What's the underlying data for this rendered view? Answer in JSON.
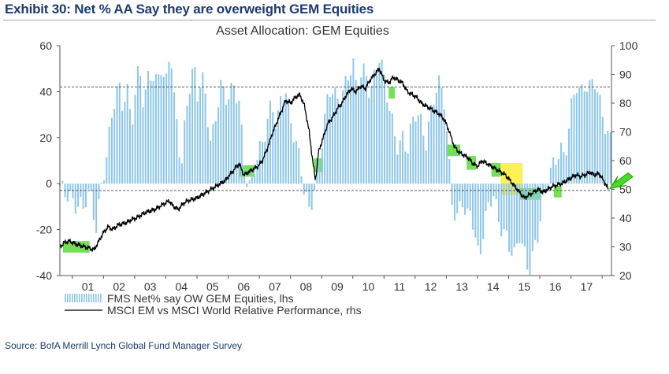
{
  "exhibit_title": "Exhibit 30: Net % AA Say they are overweight GEM Equities",
  "source": "Source: BofA Merrill Lynch Global Fund Manager Survey",
  "colors": {
    "bars": "#8ec6ec",
    "line": "#000000",
    "green": "#66dd44",
    "yellow": "#ffee44",
    "arrow": "#44dd22",
    "text": "#1f3b73"
  },
  "chart_data": {
    "type": "bar",
    "title": "Asset Allocation: GEM Equities",
    "ylim_left": [
      -40,
      60
    ],
    "ylim_right": [
      20,
      100
    ],
    "left_ticks": [
      "-40",
      "-20",
      "0",
      "20",
      "40",
      "60"
    ],
    "right_ticks": [
      "20",
      "30",
      "40",
      "50",
      "60",
      "70",
      "80",
      "90",
      "100"
    ],
    "x_labels": [
      "01",
      "02",
      "03",
      "04",
      "05",
      "06",
      "07",
      "08",
      "09",
      "10",
      "11",
      "12",
      "13",
      "14",
      "15",
      "16",
      "17"
    ],
    "x_range": [
      2000.6,
      2018.3
    ],
    "dashed_upper_lhs": 42,
    "dashed_lower_lhs": -3,
    "legend": [
      {
        "label": "FMS Net% say OW GEM Equities, lhs",
        "kind": "bar"
      },
      {
        "label": "MSCI EM vs MSCI World Relative Performance, rhs",
        "kind": "line"
      }
    ],
    "bar_keypoints": [
      [
        2000.6,
        -3
      ],
      [
        2000.75,
        -7
      ],
      [
        2000.9,
        -4
      ],
      [
        2001.05,
        -8
      ],
      [
        2001.2,
        -6
      ],
      [
        2001.35,
        -12
      ],
      [
        2001.5,
        -5
      ],
      [
        2001.6,
        -9
      ],
      [
        2001.75,
        -20
      ],
      [
        2001.9,
        -2
      ],
      [
        2002.0,
        6
      ],
      [
        2002.1,
        14
      ],
      [
        2002.25,
        26
      ],
      [
        2002.4,
        38
      ],
      [
        2002.5,
        40
      ],
      [
        2002.6,
        34
      ],
      [
        2002.75,
        44
      ],
      [
        2002.9,
        28
      ],
      [
        2003.0,
        38
      ],
      [
        2003.15,
        50
      ],
      [
        2003.3,
        30
      ],
      [
        2003.4,
        44
      ],
      [
        2003.55,
        50
      ],
      [
        2003.7,
        46
      ],
      [
        2003.85,
        52
      ],
      [
        2004.0,
        40
      ],
      [
        2004.15,
        58
      ],
      [
        2004.25,
        38
      ],
      [
        2004.4,
        20
      ],
      [
        2004.5,
        10
      ],
      [
        2004.6,
        26
      ],
      [
        2004.75,
        42
      ],
      [
        2004.9,
        50
      ],
      [
        2005.0,
        34
      ],
      [
        2005.15,
        48
      ],
      [
        2005.3,
        36
      ],
      [
        2005.45,
        20
      ],
      [
        2005.6,
        28
      ],
      [
        2005.75,
        42
      ],
      [
        2005.9,
        34
      ],
      [
        2006.05,
        40
      ],
      [
        2006.2,
        44
      ],
      [
        2006.35,
        38
      ],
      [
        2006.5,
        10
      ],
      [
        2006.6,
        0
      ],
      [
        2006.7,
        -4
      ],
      [
        2006.85,
        6
      ],
      [
        2006.95,
        14
      ],
      [
        2007.1,
        20
      ],
      [
        2007.25,
        28
      ],
      [
        2007.4,
        34
      ],
      [
        2007.55,
        22
      ],
      [
        2007.7,
        36
      ],
      [
        2007.85,
        42
      ],
      [
        2008.0,
        30
      ],
      [
        2008.15,
        20
      ],
      [
        2008.3,
        8
      ],
      [
        2008.45,
        -6
      ],
      [
        2008.6,
        -12
      ],
      [
        2008.75,
        -2
      ],
      [
        2008.85,
        8
      ],
      [
        2009.0,
        18
      ],
      [
        2009.15,
        32
      ],
      [
        2009.3,
        40
      ],
      [
        2009.5,
        36
      ],
      [
        2009.65,
        42
      ],
      [
        2009.8,
        46
      ],
      [
        2010.0,
        52
      ],
      [
        2010.1,
        40
      ],
      [
        2010.25,
        46
      ],
      [
        2010.4,
        50
      ],
      [
        2010.55,
        42
      ],
      [
        2010.7,
        48
      ],
      [
        2010.85,
        54
      ],
      [
        2011.0,
        44
      ],
      [
        2011.15,
        34
      ],
      [
        2011.3,
        26
      ],
      [
        2011.45,
        18
      ],
      [
        2011.6,
        20
      ],
      [
        2011.75,
        12
      ],
      [
        2011.9,
        24
      ],
      [
        2012.05,
        32
      ],
      [
        2012.2,
        28
      ],
      [
        2012.35,
        20
      ],
      [
        2012.5,
        30
      ],
      [
        2012.65,
        38
      ],
      [
        2012.8,
        42
      ],
      [
        2012.95,
        36
      ],
      [
        2013.05,
        18
      ],
      [
        2013.2,
        -8
      ],
      [
        2013.35,
        -16
      ],
      [
        2013.5,
        -8
      ],
      [
        2013.65,
        -18
      ],
      [
        2013.8,
        -10
      ],
      [
        2013.95,
        -24
      ],
      [
        2014.05,
        -30
      ],
      [
        2014.2,
        -20
      ],
      [
        2014.35,
        -12
      ],
      [
        2014.5,
        -6
      ],
      [
        2014.65,
        -14
      ],
      [
        2014.8,
        -18
      ],
      [
        2014.95,
        -22
      ],
      [
        2015.05,
        -28
      ],
      [
        2015.2,
        -34
      ],
      [
        2015.35,
        -24
      ],
      [
        2015.5,
        -30
      ],
      [
        2015.65,
        -36
      ],
      [
        2015.8,
        -28
      ],
      [
        2015.95,
        -22
      ],
      [
        2016.05,
        -14
      ],
      [
        2016.2,
        -6
      ],
      [
        2016.35,
        6
      ],
      [
        2016.5,
        12
      ],
      [
        2016.65,
        18
      ],
      [
        2016.8,
        10
      ],
      [
        2016.95,
        24
      ],
      [
        2017.05,
        34
      ],
      [
        2017.2,
        44
      ],
      [
        2017.3,
        40
      ],
      [
        2017.45,
        46
      ],
      [
        2017.6,
        42
      ],
      [
        2017.75,
        44
      ],
      [
        2017.9,
        34
      ],
      [
        2018.0,
        30
      ],
      [
        2018.1,
        26
      ],
      [
        2018.2,
        22
      ]
    ],
    "line_keypoints": [
      [
        2000.6,
        30
      ],
      [
        2000.75,
        31.5
      ],
      [
        2000.9,
        32
      ],
      [
        2001.1,
        31
      ],
      [
        2001.25,
        30.5
      ],
      [
        2001.4,
        30
      ],
      [
        2001.55,
        29.5
      ],
      [
        2001.7,
        29
      ],
      [
        2001.85,
        32
      ],
      [
        2002.0,
        35
      ],
      [
        2002.15,
        37
      ],
      [
        2002.3,
        36
      ],
      [
        2002.45,
        37.5
      ],
      [
        2002.6,
        38
      ],
      [
        2002.75,
        38.5
      ],
      [
        2002.9,
        39.5
      ],
      [
        2003.05,
        40
      ],
      [
        2003.2,
        41
      ],
      [
        2003.35,
        42
      ],
      [
        2003.5,
        42.5
      ],
      [
        2003.65,
        43
      ],
      [
        2003.8,
        44
      ],
      [
        2003.95,
        45
      ],
      [
        2004.1,
        46
      ],
      [
        2004.25,
        44
      ],
      [
        2004.4,
        43
      ],
      [
        2004.55,
        45
      ],
      [
        2004.7,
        46
      ],
      [
        2004.85,
        46.5
      ],
      [
        2005.0,
        47
      ],
      [
        2005.15,
        48
      ],
      [
        2005.3,
        49
      ],
      [
        2005.45,
        50
      ],
      [
        2005.6,
        51
      ],
      [
        2005.75,
        52
      ],
      [
        2005.9,
        53
      ],
      [
        2006.05,
        55
      ],
      [
        2006.2,
        57
      ],
      [
        2006.35,
        59
      ],
      [
        2006.5,
        55
      ],
      [
        2006.65,
        56
      ],
      [
        2006.8,
        57
      ],
      [
        2006.95,
        58
      ],
      [
        2007.1,
        60
      ],
      [
        2007.25,
        64
      ],
      [
        2007.4,
        69
      ],
      [
        2007.55,
        73
      ],
      [
        2007.7,
        77
      ],
      [
        2007.85,
        81
      ],
      [
        2008.0,
        80
      ],
      [
        2008.15,
        82
      ],
      [
        2008.3,
        83
      ],
      [
        2008.45,
        79
      ],
      [
        2008.6,
        70
      ],
      [
        2008.7,
        61
      ],
      [
        2008.8,
        53
      ],
      [
        2008.9,
        63
      ],
      [
        2009.05,
        68
      ],
      [
        2009.2,
        73
      ],
      [
        2009.35,
        75
      ],
      [
        2009.5,
        78
      ],
      [
        2009.65,
        80
      ],
      [
        2009.8,
        83
      ],
      [
        2009.95,
        85
      ],
      [
        2010.1,
        84
      ],
      [
        2010.25,
        86
      ],
      [
        2010.4,
        85
      ],
      [
        2010.55,
        88
      ],
      [
        2010.7,
        90
      ],
      [
        2010.85,
        92
      ],
      [
        2011.0,
        88
      ],
      [
        2011.15,
        87
      ],
      [
        2011.3,
        89
      ],
      [
        2011.45,
        88
      ],
      [
        2011.6,
        87
      ],
      [
        2011.75,
        84
      ],
      [
        2011.9,
        83
      ],
      [
        2012.05,
        82
      ],
      [
        2012.2,
        80
      ],
      [
        2012.35,
        79
      ],
      [
        2012.5,
        78
      ],
      [
        2012.65,
        77
      ],
      [
        2012.8,
        76
      ],
      [
        2012.95,
        74
      ],
      [
        2013.1,
        70
      ],
      [
        2013.25,
        65
      ],
      [
        2013.4,
        63
      ],
      [
        2013.55,
        62
      ],
      [
        2013.7,
        61
      ],
      [
        2013.85,
        59
      ],
      [
        2014.0,
        58
      ],
      [
        2014.15,
        60
      ],
      [
        2014.3,
        59
      ],
      [
        2014.45,
        58
      ],
      [
        2014.6,
        57
      ],
      [
        2014.75,
        56
      ],
      [
        2014.9,
        55
      ],
      [
        2015.05,
        53
      ],
      [
        2015.2,
        51
      ],
      [
        2015.35,
        49
      ],
      [
        2015.5,
        47
      ],
      [
        2015.65,
        48
      ],
      [
        2015.8,
        49
      ],
      [
        2015.95,
        50
      ],
      [
        2016.1,
        49
      ],
      [
        2016.25,
        50
      ],
      [
        2016.4,
        51
      ],
      [
        2016.55,
        51.5
      ],
      [
        2016.7,
        52
      ],
      [
        2016.85,
        53
      ],
      [
        2017.0,
        54
      ],
      [
        2017.15,
        55
      ],
      [
        2017.3,
        54.5
      ],
      [
        2017.45,
        55
      ],
      [
        2017.6,
        56
      ],
      [
        2017.75,
        55
      ],
      [
        2017.9,
        55.5
      ],
      [
        2018.05,
        53
      ],
      [
        2018.2,
        50
      ]
    ],
    "highlights": [
      {
        "from": 2000.7,
        "to": 2001.55,
        "lhs_low": -30,
        "lhs_high": -25,
        "color": "green"
      },
      {
        "from": 2006.35,
        "to": 2006.85,
        "lhs_low": 3,
        "lhs_high": 8,
        "color": "green"
      },
      {
        "from": 2008.75,
        "to": 2009.05,
        "lhs_low": 5,
        "lhs_high": 11,
        "color": "green"
      },
      {
        "from": 2011.15,
        "to": 2011.35,
        "lhs_low": 37,
        "lhs_high": 42,
        "color": "green"
      },
      {
        "from": 2013.0,
        "to": 2013.45,
        "lhs_low": 12,
        "lhs_high": 17,
        "color": "green"
      },
      {
        "from": 2013.65,
        "to": 2013.95,
        "lhs_low": 6,
        "lhs_high": 12,
        "color": "green"
      },
      {
        "from": 2014.45,
        "to": 2014.75,
        "lhs_low": 3,
        "lhs_high": 9,
        "color": "green"
      },
      {
        "from": 2014.75,
        "to": 2015.45,
        "lhs_low": -5,
        "lhs_high": 9,
        "color": "yellow"
      },
      {
        "from": 2015.35,
        "to": 2016.05,
        "lhs_low": -7,
        "lhs_high": -2,
        "color": "green"
      },
      {
        "from": 2016.45,
        "to": 2016.7,
        "lhs_low": -6,
        "lhs_high": -1,
        "color": "green"
      }
    ]
  }
}
